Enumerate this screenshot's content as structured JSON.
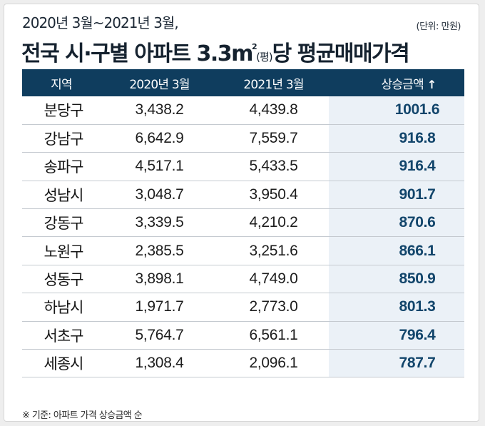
{
  "header": {
    "subtitle": "2020년 3월~2021년 3월,",
    "unit_note": "(단위: 만원)",
    "title_main": "전국 시·구별 아파트 3.3m",
    "title_sup": "2",
    "title_paren": "(평)",
    "title_tail": "당 평균매매가격"
  },
  "table": {
    "columns": [
      "지역",
      "2020년 3월",
      "2021년 3월",
      "상승금액"
    ],
    "sort_icon": "↑",
    "accent_color": "#0f3d5e",
    "highlight_bg": "#ebf1f7",
    "rows": [
      {
        "region": "분당구",
        "mar2020": "3,438.2",
        "mar2021": "4,439.8",
        "rise": "1001.6"
      },
      {
        "region": "강남구",
        "mar2020": "6,642.9",
        "mar2021": "7,559.7",
        "rise": "916.8"
      },
      {
        "region": "송파구",
        "mar2020": "4,517.1",
        "mar2021": "5,433.5",
        "rise": "916.4"
      },
      {
        "region": "성남시",
        "mar2020": "3,048.7",
        "mar2021": "3,950.4",
        "rise": "901.7"
      },
      {
        "region": "강동구",
        "mar2020": "3,339.5",
        "mar2021": "4,210.2",
        "rise": "870.6"
      },
      {
        "region": "노원구",
        "mar2020": "2,385.5",
        "mar2021": "3,251.6",
        "rise": "866.1"
      },
      {
        "region": "성동구",
        "mar2020": "3,898.1",
        "mar2021": "4,749.0",
        "rise": "850.9"
      },
      {
        "region": "하남시",
        "mar2020": "1,971.7",
        "mar2021": "2,773.0",
        "rise": "801.3"
      },
      {
        "region": "서초구",
        "mar2020": "5,764.7",
        "mar2021": "6,561.1",
        "rise": "796.4"
      },
      {
        "region": "세종시",
        "mar2020": "1,308.4",
        "mar2021": "2,096.1",
        "rise": "787.7"
      }
    ]
  },
  "footnote": "※ 기준: 아파트 가격 상승금액 순"
}
